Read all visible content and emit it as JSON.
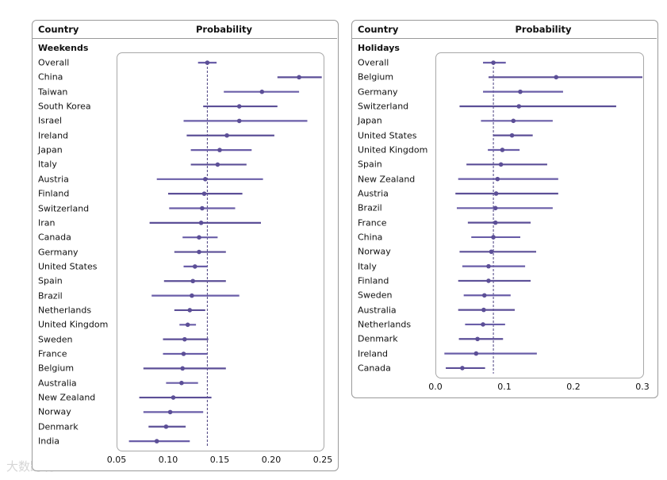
{
  "panels": [
    {
      "country_header": "Country",
      "prob_header": "Probability",
      "section": "Weekends"
    },
    {
      "country_header": "Country",
      "prob_header": "Probability",
      "section": "Holidays"
    }
  ],
  "watermark": "大数跨境",
  "chart_data": [
    {
      "type": "forest",
      "title": "Weekends",
      "xlabel": "Probability",
      "xlim": [
        0.05,
        0.25
      ],
      "ticks": [
        "0.05",
        "0.10",
        "0.15",
        "0.20",
        "0.25"
      ],
      "tick_values": [
        0.05,
        0.1,
        0.15,
        0.2,
        0.25
      ],
      "reference": 0.138,
      "color": "#5c4f97",
      "rows": [
        {
          "country": "Overall",
          "est": 0.138,
          "lo": 0.129,
          "hi": 0.147
        },
        {
          "country": "China",
          "est": 0.227,
          "lo": 0.206,
          "hi": 0.249
        },
        {
          "country": "Taiwan",
          "est": 0.191,
          "lo": 0.154,
          "hi": 0.227
        },
        {
          "country": "South Korea",
          "est": 0.169,
          "lo": 0.134,
          "hi": 0.206
        },
        {
          "country": "Israel",
          "est": 0.169,
          "lo": 0.115,
          "hi": 0.235
        },
        {
          "country": "Ireland",
          "est": 0.157,
          "lo": 0.118,
          "hi": 0.203
        },
        {
          "country": "Japan",
          "est": 0.15,
          "lo": 0.122,
          "hi": 0.181
        },
        {
          "country": "Italy",
          "est": 0.148,
          "lo": 0.122,
          "hi": 0.176
        },
        {
          "country": "Austria",
          "est": 0.136,
          "lo": 0.089,
          "hi": 0.192
        },
        {
          "country": "Finland",
          "est": 0.135,
          "lo": 0.1,
          "hi": 0.172
        },
        {
          "country": "Switzerland",
          "est": 0.133,
          "lo": 0.101,
          "hi": 0.165
        },
        {
          "country": "Iran",
          "est": 0.132,
          "lo": 0.082,
          "hi": 0.19
        },
        {
          "country": "Canada",
          "est": 0.13,
          "lo": 0.114,
          "hi": 0.148
        },
        {
          "country": "Germany",
          "est": 0.13,
          "lo": 0.106,
          "hi": 0.156
        },
        {
          "country": "United States",
          "est": 0.126,
          "lo": 0.115,
          "hi": 0.138
        },
        {
          "country": "Spain",
          "est": 0.124,
          "lo": 0.096,
          "hi": 0.156
        },
        {
          "country": "Brazil",
          "est": 0.123,
          "lo": 0.084,
          "hi": 0.169
        },
        {
          "country": "Netherlands",
          "est": 0.121,
          "lo": 0.106,
          "hi": 0.136
        },
        {
          "country": "United Kingdom",
          "est": 0.119,
          "lo": 0.111,
          "hi": 0.127
        },
        {
          "country": "Sweden",
          "est": 0.116,
          "lo": 0.095,
          "hi": 0.139
        },
        {
          "country": "France",
          "est": 0.115,
          "lo": 0.095,
          "hi": 0.138
        },
        {
          "country": "Belgium",
          "est": 0.114,
          "lo": 0.076,
          "hi": 0.156
        },
        {
          "country": "Australia",
          "est": 0.113,
          "lo": 0.098,
          "hi": 0.129
        },
        {
          "country": "New Zealand",
          "est": 0.105,
          "lo": 0.072,
          "hi": 0.142
        },
        {
          "country": "Norway",
          "est": 0.102,
          "lo": 0.076,
          "hi": 0.134
        },
        {
          "country": "Denmark",
          "est": 0.098,
          "lo": 0.081,
          "hi": 0.117
        },
        {
          "country": "India",
          "est": 0.089,
          "lo": 0.062,
          "hi": 0.121
        }
      ]
    },
    {
      "type": "forest",
      "title": "Holidays",
      "xlabel": "Probability",
      "xlim": [
        0.0,
        0.3
      ],
      "ticks": [
        "0.0",
        "0.1",
        "0.2",
        "0.3"
      ],
      "tick_values": [
        0.0,
        0.1,
        0.2,
        0.3
      ],
      "reference": 0.084,
      "color": "#5c4f97",
      "rows": [
        {
          "country": "Overall",
          "est": 0.084,
          "lo": 0.069,
          "hi": 0.102
        },
        {
          "country": "Belgium",
          "est": 0.175,
          "lo": 0.077,
          "hi": 0.3
        },
        {
          "country": "Germany",
          "est": 0.123,
          "lo": 0.069,
          "hi": 0.185
        },
        {
          "country": "Switzerland",
          "est": 0.121,
          "lo": 0.035,
          "hi": 0.262
        },
        {
          "country": "Japan",
          "est": 0.113,
          "lo": 0.066,
          "hi": 0.17
        },
        {
          "country": "United States",
          "est": 0.111,
          "lo": 0.084,
          "hi": 0.141
        },
        {
          "country": "United Kingdom",
          "est": 0.097,
          "lo": 0.076,
          "hi": 0.122
        },
        {
          "country": "Spain",
          "est": 0.095,
          "lo": 0.045,
          "hi": 0.162
        },
        {
          "country": "New Zealand",
          "est": 0.09,
          "lo": 0.033,
          "hi": 0.178
        },
        {
          "country": "Austria",
          "est": 0.088,
          "lo": 0.029,
          "hi": 0.178
        },
        {
          "country": "Brazil",
          "est": 0.087,
          "lo": 0.031,
          "hi": 0.17
        },
        {
          "country": "France",
          "est": 0.087,
          "lo": 0.047,
          "hi": 0.138
        },
        {
          "country": "China",
          "est": 0.084,
          "lo": 0.052,
          "hi": 0.123
        },
        {
          "country": "Norway",
          "est": 0.081,
          "lo": 0.035,
          "hi": 0.146
        },
        {
          "country": "Italy",
          "est": 0.077,
          "lo": 0.039,
          "hi": 0.13
        },
        {
          "country": "Finland",
          "est": 0.077,
          "lo": 0.033,
          "hi": 0.138
        },
        {
          "country": "Sweden",
          "est": 0.071,
          "lo": 0.041,
          "hi": 0.109
        },
        {
          "country": "Australia",
          "est": 0.07,
          "lo": 0.033,
          "hi": 0.115
        },
        {
          "country": "Netherlands",
          "est": 0.069,
          "lo": 0.043,
          "hi": 0.101
        },
        {
          "country": "Denmark",
          "est": 0.061,
          "lo": 0.034,
          "hi": 0.098
        },
        {
          "country": "Ireland",
          "est": 0.059,
          "lo": 0.013,
          "hi": 0.147
        },
        {
          "country": "Canada",
          "est": 0.039,
          "lo": 0.015,
          "hi": 0.072
        }
      ]
    }
  ]
}
